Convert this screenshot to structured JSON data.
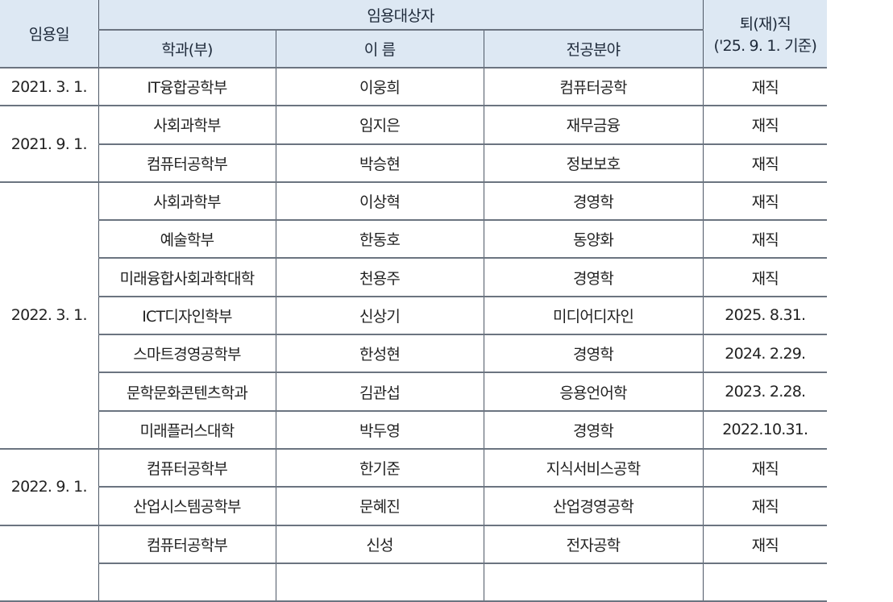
{
  "header": {
    "date": "임용일",
    "group": "임용대상자",
    "dept": "학과(부)",
    "name": "이 름",
    "major": "전공분야",
    "status_line1": "퇴(재)직",
    "status_line2": "('25. 9. 1. 기준)"
  },
  "groups": [
    {
      "date": "2021. 3. 1.",
      "rows": [
        {
          "dept": "IT융합공학부",
          "name": "이웅희",
          "major": "컴퓨터공학",
          "status": "재직"
        }
      ]
    },
    {
      "date": "2021. 9. 1.",
      "rows": [
        {
          "dept": "사회과학부",
          "name": "임지은",
          "major": "재무금융",
          "status": "재직"
        },
        {
          "dept": "컴퓨터공학부",
          "name": "박승현",
          "major": "정보보호",
          "status": "재직"
        }
      ]
    },
    {
      "date": "2022. 3. 1.",
      "rows": [
        {
          "dept": "사회과학부",
          "name": "이상혁",
          "major": "경영학",
          "status": "재직"
        },
        {
          "dept": "예술학부",
          "name": "한동호",
          "major": "동양화",
          "status": "재직"
        },
        {
          "dept": "미래융합사회과학대학",
          "name": "천용주",
          "major": "경영학",
          "status": "재직"
        },
        {
          "dept": "ICT디자인학부",
          "name": "신상기",
          "major": "미디어디자인",
          "status": "2025. 8.31."
        },
        {
          "dept": "스마트경영공학부",
          "name": "한성현",
          "major": "경영학",
          "status": "2024. 2.29."
        },
        {
          "dept": "문학문화콘텐츠학과",
          "name": "김관섭",
          "major": "응용언어학",
          "status": "2023. 2.28."
        },
        {
          "dept": "미래플러스대학",
          "name": "박두영",
          "major": "경영학",
          "status": "2022.10.31."
        }
      ]
    },
    {
      "date": "2022. 9. 1.",
      "rows": [
        {
          "dept": "컴퓨터공학부",
          "name": "한기준",
          "major": "지식서비스공학",
          "status": "재직"
        },
        {
          "dept": "산업시스템공학부",
          "name": "문혜진",
          "major": "산업경영공학",
          "status": "재직"
        }
      ]
    },
    {
      "date": "",
      "rows": [
        {
          "dept": "컴퓨터공학부",
          "name": "신성",
          "major": "전자공학",
          "status": "재직"
        },
        {
          "dept": "",
          "name": "",
          "major": "",
          "status": ""
        }
      ]
    }
  ]
}
